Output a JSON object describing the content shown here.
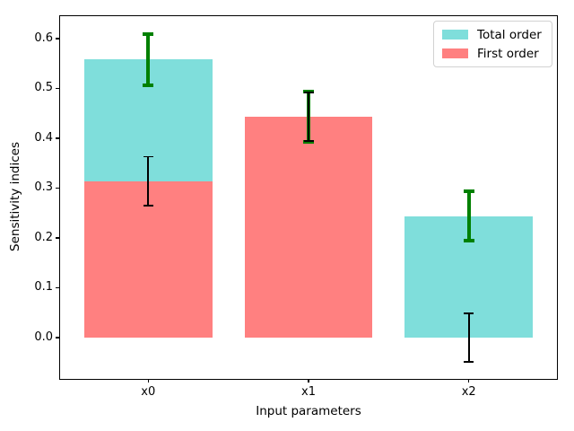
{
  "chart_data": {
    "type": "bar",
    "title": "",
    "xlabel": "Input parameters",
    "ylabel": "Sensitivity indices",
    "categories": [
      "x0",
      "x1",
      "x2"
    ],
    "series": [
      {
        "name": "Total order",
        "color": "#7fdedb",
        "values": [
          0.558,
          0.443,
          0.244
        ],
        "errors": [
          0.051,
          0.05,
          0.05
        ],
        "error_color": "#008000",
        "error_linewidth": 4,
        "error_capwidth": 12
      },
      {
        "name": "First order",
        "color": "#ff8080",
        "values": [
          0.314,
          0.443,
          0.0
        ],
        "errors": [
          0.049,
          0.049,
          0.049
        ],
        "error_color": "#000000",
        "error_linewidth": 1.8,
        "error_capwidth": 11
      }
    ],
    "bar_width": 0.8,
    "xlim": [
      -0.55,
      2.55
    ],
    "ylim": [
      -0.083,
      0.645
    ],
    "yticks": [
      "0.0",
      "0.1",
      "0.2",
      "0.3",
      "0.4",
      "0.5",
      "0.6"
    ],
    "grid": false,
    "legend_position": "upper right",
    "axis_color": "#000000",
    "background_color": "#ffffff"
  }
}
